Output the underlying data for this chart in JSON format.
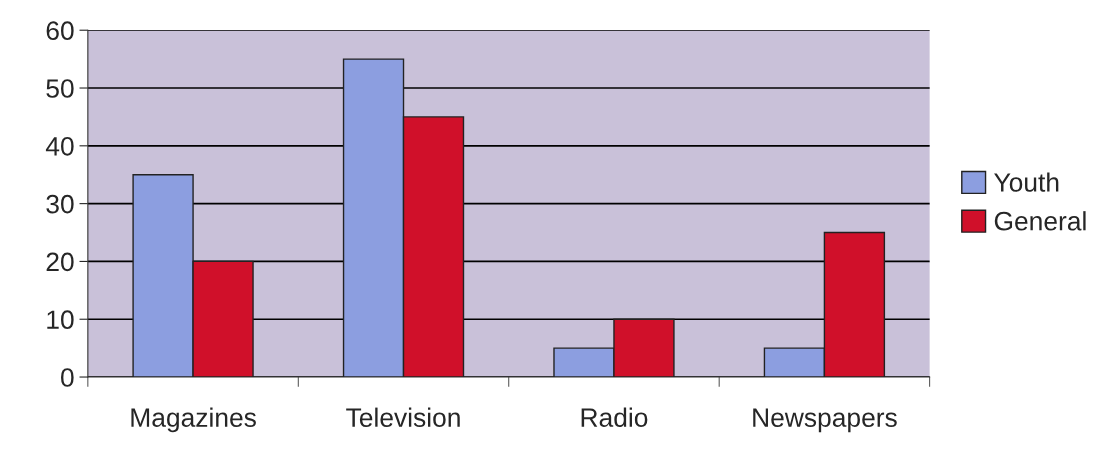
{
  "chart_data": {
    "type": "bar",
    "categories": [
      "Magazines",
      "Television",
      "Radio",
      "Newspapers"
    ],
    "series": [
      {
        "name": "Youth",
        "color": "#8c9ee0",
        "values": [
          35,
          55,
          5,
          5
        ]
      },
      {
        "name": "General",
        "color": "#d0102a",
        "values": [
          20,
          45,
          10,
          25
        ]
      }
    ],
    "ylim": [
      0,
      60
    ],
    "yticks": [
      0,
      10,
      20,
      30,
      40,
      50,
      60
    ],
    "grid": "y",
    "legend": "right"
  }
}
